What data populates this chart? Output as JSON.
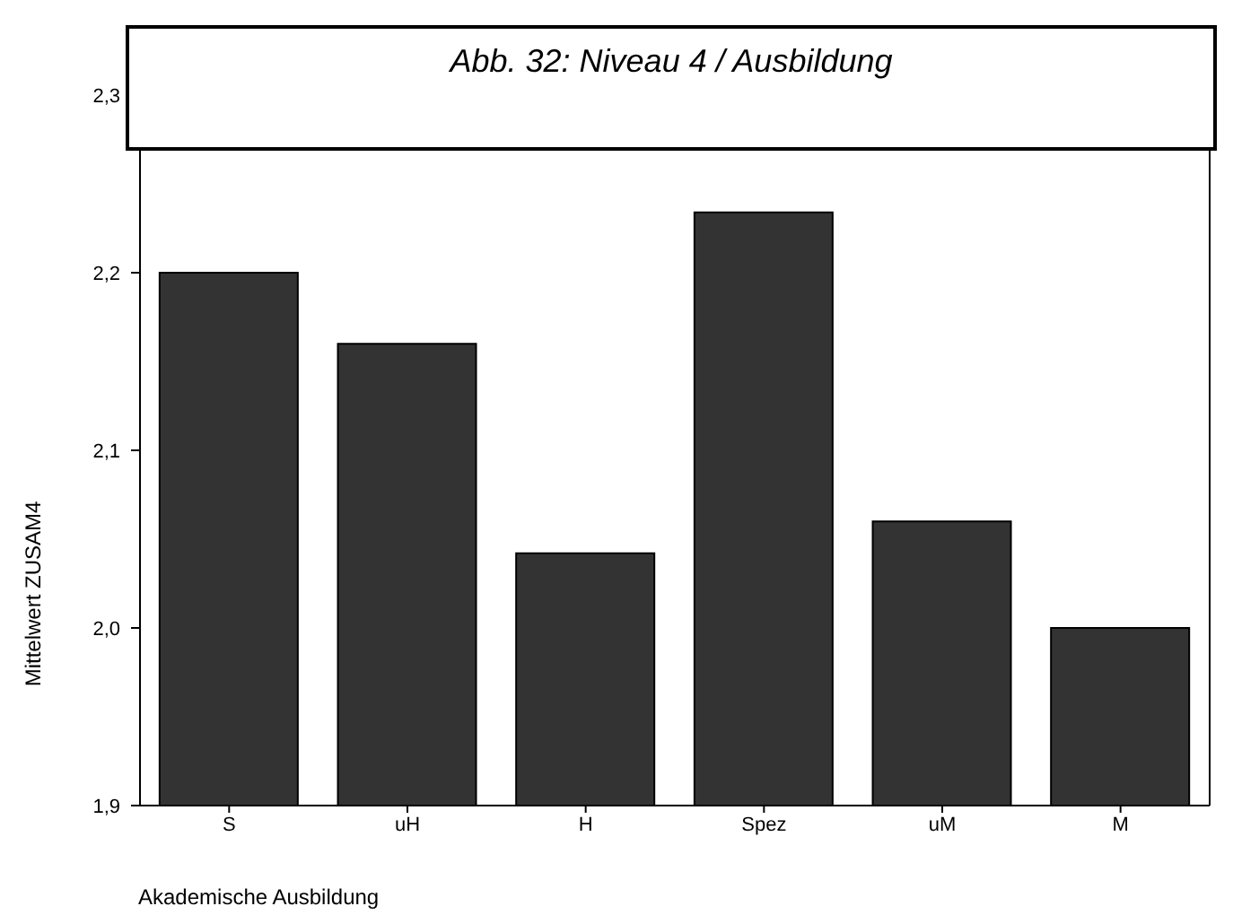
{
  "chart_data": {
    "type": "bar",
    "title": "Abb. 32: Niveau 4 / Ausbildung",
    "xlabel": "Akademische Ausbildung",
    "ylabel": "Mittelwert ZUSAM4",
    "categories": [
      "S",
      "uH",
      "H",
      "Spez",
      "uM",
      "M"
    ],
    "values": [
      2.2,
      2.16,
      2.042,
      2.234,
      2.06,
      2.0
    ],
    "color": "#333333",
    "ylim": [
      1.9,
      2.3
    ],
    "yticks": [
      {
        "value": 1.9,
        "label": "1,9"
      },
      {
        "value": 2.0,
        "label": "2,0"
      },
      {
        "value": 2.1,
        "label": "2,1"
      },
      {
        "value": 2.2,
        "label": "2,2"
      },
      {
        "value": 2.3,
        "label": "2,3"
      }
    ]
  }
}
